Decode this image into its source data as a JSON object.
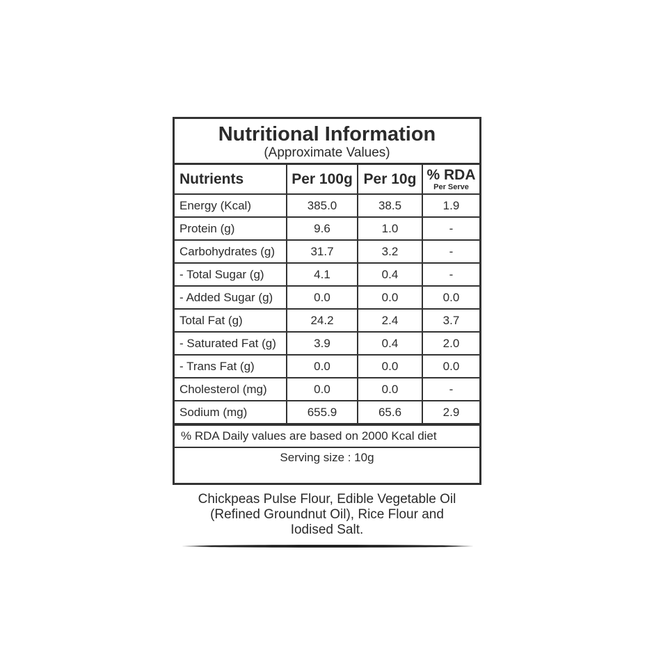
{
  "title": "Nutritional Information",
  "subtitle": "(Approximate Values)",
  "headers": {
    "nutrients": "Nutrients",
    "per100": "Per 100g",
    "per10": "Per 10g",
    "rda": "% RDA",
    "rda_sub": "Per Serve"
  },
  "rows": [
    {
      "name": "Energy (Kcal)",
      "per100": "385.0",
      "per10": "38.5",
      "rda": "1.9"
    },
    {
      "name": "Protein (g)",
      "per100": "9.6",
      "per10": "1.0",
      "rda": "-"
    },
    {
      "name": "Carbohydrates (g)",
      "per100": "31.7",
      "per10": "3.2",
      "rda": "-"
    },
    {
      "name": "- Total Sugar (g)",
      "per100": "4.1",
      "per10": "0.4",
      "rda": "-"
    },
    {
      "name": "- Added Sugar (g)",
      "per100": "0.0",
      "per10": "0.0",
      "rda": "0.0"
    },
    {
      "name": "Total Fat (g)",
      "per100": "24.2",
      "per10": "2.4",
      "rda": "3.7"
    },
    {
      "name": "- Saturated Fat (g)",
      "per100": "3.9",
      "per10": "0.4",
      "rda": "2.0"
    },
    {
      "name": "- Trans Fat (g)",
      "per100": "0.0",
      "per10": "0.0",
      "rda": "0.0"
    },
    {
      "name": "Cholesterol (mg)",
      "per100": "0.0",
      "per10": "0.0",
      "rda": "-"
    },
    {
      "name": "Sodium (mg)",
      "per100": "655.9",
      "per10": "65.6",
      "rda": "2.9"
    }
  ],
  "footnote": "% RDA Daily values are based on 2000 Kcal diet",
  "serving": "Serving size : 10g",
  "ingredients": [
    "Chickpeas Pulse Flour, Edible Vegetable Oil",
    "(Refined Groundnut Oil), Rice Flour and",
    "Iodised Salt."
  ]
}
